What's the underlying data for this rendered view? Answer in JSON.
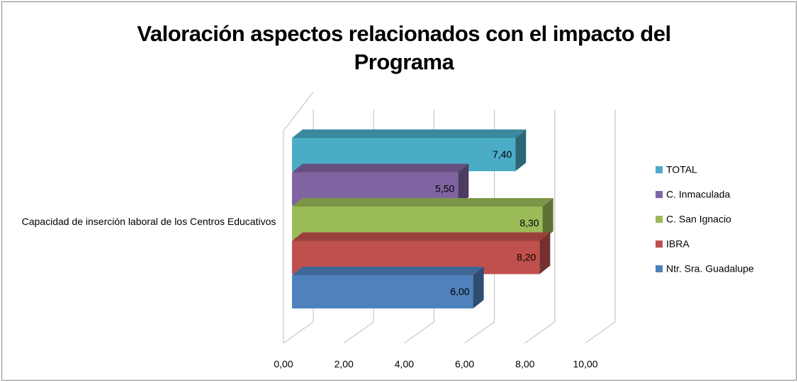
{
  "chart_data": {
    "type": "bar3d_horizontal",
    "title": "Valoración aspectos relacionados con el impacto del Programa",
    "categories": [
      "Capacidad de inserción laboral de los Centros Educativos"
    ],
    "series": [
      {
        "name": "TOTAL",
        "color": "#4bacc6",
        "values": [
          7.4
        ],
        "value_labels": [
          "7,40"
        ]
      },
      {
        "name": "C. Inmaculada",
        "color": "#8064a2",
        "values": [
          5.5
        ],
        "value_labels": [
          "5,50"
        ]
      },
      {
        "name": "C. San Ignacio",
        "color": "#9bbb59",
        "values": [
          8.3
        ],
        "value_labels": [
          "8,30"
        ]
      },
      {
        "name": "IBRA",
        "color": "#c0504d",
        "values": [
          8.2
        ],
        "value_labels": [
          "8,20"
        ]
      },
      {
        "name": "Ntr. Sra. Guadalupe",
        "color": "#4f81bd",
        "values": [
          6.0
        ],
        "value_labels": [
          "6,00"
        ]
      }
    ],
    "xlim": [
      0,
      10
    ],
    "xticks": [
      {
        "value": 0,
        "label": "0,00"
      },
      {
        "value": 2,
        "label": "2,00"
      },
      {
        "value": 4,
        "label": "4,00"
      },
      {
        "value": 6,
        "label": "6,00"
      },
      {
        "value": 8,
        "label": "8,00"
      },
      {
        "value": 10,
        "label": "10,00"
      }
    ],
    "grid": true,
    "legend": "right"
  }
}
